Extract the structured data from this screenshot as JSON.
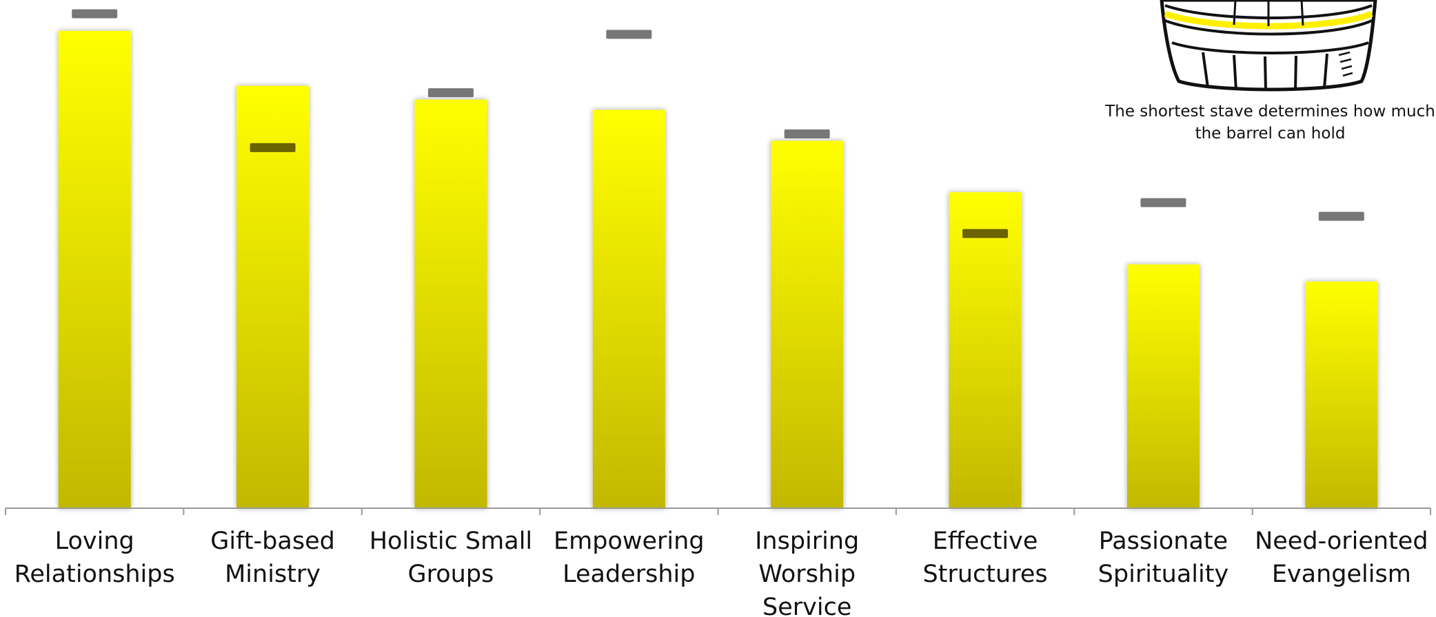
{
  "chart_data": {
    "type": "bar",
    "categories": [
      [
        "Loving",
        "Relationships"
      ],
      [
        "Gift-based",
        "Ministry"
      ],
      [
        "Holistic Small",
        "Groups"
      ],
      [
        "Empowering",
        "Leadership"
      ],
      [
        "Inspiring",
        "Worship",
        "Service"
      ],
      [
        "Effective",
        "Structures"
      ],
      [
        "Passionate",
        "Spirituality"
      ],
      [
        "Need-oriented",
        "Evangelism"
      ]
    ],
    "series": [
      {
        "values": [
          69.5,
          61.5,
          59.5,
          58.0,
          53.5,
          46.0,
          35.5,
          33.0
        ]
      },
      {
        "values": [
          72.0,
          52.5,
          60.5,
          69.0,
          54.5,
          40.0,
          44.5,
          42.5
        ]
      }
    ],
    "ylim": [
      0,
      74
    ],
    "grid": false,
    "legend": "none",
    "colors": {
      "bar_top": "#ffff00",
      "bar_bottom": "#c2b800",
      "marker": "#777777",
      "marker_on_bar": "#6b6200",
      "axis": "#999999"
    }
  },
  "caption": [
    "The shortest stave determines how much",
    "the barrel can hold"
  ],
  "illustration": "barrel-icon"
}
